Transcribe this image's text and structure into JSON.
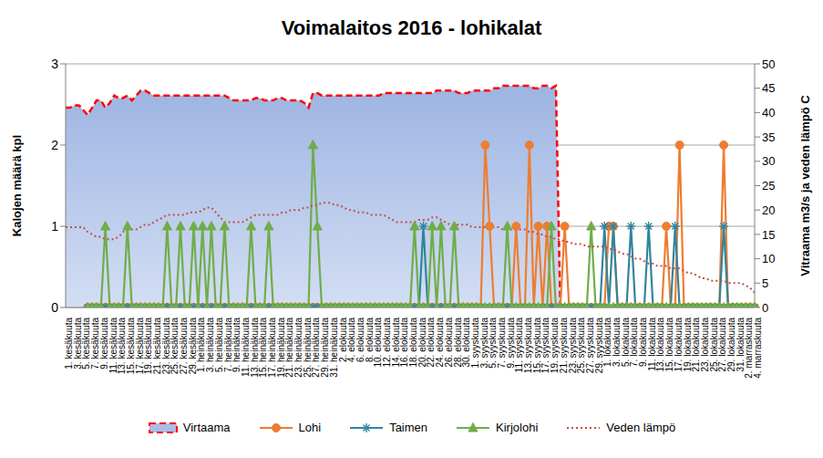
{
  "chart_data": {
    "type": "line",
    "title": "Voimalaitos 2016 - lohikalat",
    "ylabel": "Kalojen määrä kpl",
    "y2label": "Vitraama m3/s ja veden lämpö C",
    "categories": [
      "1. kesäkuuta",
      null,
      "3. kesäkuuta",
      null,
      "5. kesäkuuta",
      null,
      "7. kesäkuuta",
      null,
      "9. kesäkuuta",
      null,
      "11. kesäkuuta",
      null,
      "13. kesäkuuta",
      null,
      "15. kesäkuuta",
      null,
      "17. kesäkuuta",
      null,
      "19. kesäkuuta",
      null,
      "21. kesäkuuta",
      null,
      "23. kesäkuuta",
      null,
      "25. kesäkuuta",
      null,
      "27. kesäkuuta",
      null,
      "29. kesäkuuta",
      null,
      "1. heinäkuuta",
      null,
      "3. heinäkuuta",
      null,
      "5. heinäkuuta",
      null,
      "7. heinäkuuta",
      null,
      "9. heinäkuuta",
      null,
      "11. heinäkuuta",
      null,
      "13. heinäkuuta",
      null,
      "15. heinäkuuta",
      null,
      "17. heinäkuuta",
      null,
      "19. heinäkuuta",
      null,
      "21. heinäkuuta",
      null,
      "23. heinäkuuta",
      null,
      "25. heinäkuuta",
      null,
      "27. heinäkuuta",
      null,
      "29. heinäkuuta",
      null,
      "31. heinäkuuta",
      null,
      "2. elokuuta",
      null,
      "4. elokuuta",
      null,
      "6. elokuuta",
      null,
      "8. elokuuta",
      null,
      "10. elokuuta",
      null,
      "12. elokuuta",
      null,
      "14. elokuuta",
      null,
      "16. elokuuta",
      null,
      "18. elokuuta",
      null,
      "20. elokuuta",
      null,
      "22. elokuuta",
      null,
      "24. elokuuta",
      null,
      "26. elokuuta",
      null,
      "28. elokuuta",
      null,
      "30. elokuuta",
      null,
      "1. syyskuuta",
      null,
      "3. syyskuuta",
      null,
      "5. syyskuuta",
      null,
      "7. syyskuuta",
      null,
      "9. syyskuuta",
      null,
      "11. syyskuuta",
      null,
      "13. syyskuuta",
      null,
      "15. syyskuuta",
      null,
      "17. syyskuuta",
      null,
      "19. syyskuuta",
      null,
      "21. syyskuuta",
      null,
      "23. syyskuuta",
      null,
      "25. syyskuuta",
      null,
      "27. syyskuuta",
      null,
      "29. syyskuuta",
      null,
      "1. lokakuuta",
      null,
      "3. lokakuuta",
      null,
      "5. lokakuuta",
      null,
      "7. lokakuuta",
      null,
      "9. lokakuuta",
      null,
      "11. lokakuuta",
      null,
      "13. lokakuuta",
      null,
      "15. lokakuuta",
      null,
      "17. lokakuuta",
      null,
      "19. lokakuuta",
      null,
      "21. lokakuuta",
      null,
      "23. lokakuuta",
      null,
      "25. lokakuuta",
      null,
      "27. lokakuuta",
      null,
      "29. lokakuuta",
      null,
      "31. lokakuuta",
      null,
      "2. marraskuuta",
      null,
      "4. marraskuuta"
    ],
    "series": [
      {
        "name": "Virtaama",
        "type": "area",
        "axis": "y2",
        "color": "#ff0000",
        "line_style": "dashed",
        "values": [
          41,
          41,
          41.5,
          41.5,
          40.5,
          39.5,
          41,
          42.5,
          42.5,
          41,
          42,
          43.5,
          43,
          43,
          43.5,
          42.5,
          43.5,
          44.5,
          44.5,
          44,
          43.5,
          43.5,
          43.5,
          43.5,
          43.5,
          43.5,
          43.5,
          43.5,
          43.5,
          43.5,
          43.5,
          43.5,
          43.5,
          43.5,
          43.5,
          43.5,
          43.5,
          43,
          42.5,
          42.5,
          42.5,
          42.5,
          42.5,
          43,
          43,
          42.5,
          42.5,
          42.5,
          43,
          43,
          42.5,
          42.5,
          42.5,
          42.5,
          42,
          41,
          44,
          44,
          43.5,
          43.5,
          43.5,
          43.5,
          43.5,
          43.5,
          43.5,
          43.5,
          43.5,
          43.5,
          43.5,
          43.5,
          43.5,
          43.5,
          44,
          44,
          44,
          44,
          44,
          44,
          44,
          44,
          44,
          44,
          44,
          44,
          44.5,
          44.5,
          44.5,
          44.5,
          44.5,
          44,
          44,
          44,
          44.5,
          44.5,
          44.5,
          44.5,
          44.5,
          45,
          45,
          45.5,
          45.5,
          45.5,
          45.5,
          45.5,
          45.5,
          45.5,
          45,
          45,
          45.5,
          45.5,
          45,
          45.5,
          0,
          0,
          0,
          0,
          0,
          0,
          0,
          0,
          0,
          0,
          0,
          0,
          0,
          0,
          0,
          0,
          0,
          0,
          0,
          0,
          0,
          0,
          0,
          0,
          0,
          0,
          0,
          0,
          0,
          0,
          0,
          0,
          0,
          0,
          0,
          0,
          0,
          0,
          0,
          0,
          0,
          0,
          0,
          0,
          0
        ]
      },
      {
        "name": "Lohi",
        "type": "line",
        "color": "#ed7d31",
        "marker": "circle",
        "line_style": "solid",
        "values": [
          null,
          null,
          null,
          null,
          null,
          0,
          0,
          0,
          0,
          0,
          0,
          0,
          0,
          0,
          0,
          0,
          0,
          0,
          0,
          0,
          0,
          0,
          0,
          0,
          0,
          0,
          0,
          0,
          0,
          0,
          0,
          0,
          0,
          0,
          0,
          0,
          0,
          0,
          0,
          0,
          0,
          0,
          0,
          0,
          0,
          0,
          0,
          0,
          0,
          0,
          0,
          0,
          0,
          0,
          0,
          0,
          0,
          0,
          0,
          0,
          0,
          0,
          0,
          0,
          0,
          0,
          0,
          0,
          0,
          0,
          0,
          0,
          0,
          0,
          0,
          0,
          0,
          0,
          0,
          0,
          0,
          0,
          0,
          0,
          0,
          0,
          0,
          0,
          0,
          0,
          0,
          0,
          0,
          0,
          0,
          2,
          1,
          0,
          0,
          0,
          0,
          0,
          1,
          0,
          0,
          2,
          0,
          1,
          0,
          1,
          0,
          0,
          0,
          1,
          0,
          0,
          0,
          0,
          0,
          0,
          0,
          0,
          0,
          1,
          1,
          0,
          0,
          0,
          0,
          0,
          0,
          0,
          0,
          0,
          0,
          0,
          1,
          0,
          0,
          2,
          0,
          0,
          0,
          0,
          0,
          0,
          0,
          0,
          0,
          2,
          0,
          0,
          0,
          0,
          0,
          0,
          0
        ]
      },
      {
        "name": "Taimen",
        "type": "line",
        "color": "#31859c",
        "marker": "asterisk",
        "line_style": "solid",
        "values": [
          null,
          null,
          null,
          null,
          null,
          0,
          0,
          0,
          0,
          0,
          0,
          0,
          0,
          0,
          0,
          0,
          0,
          0,
          0,
          0,
          0,
          0,
          0,
          0,
          0,
          0,
          0,
          0,
          0,
          0,
          0,
          0,
          0,
          0,
          0,
          0,
          0,
          0,
          0,
          0,
          0,
          0,
          0,
          0,
          0,
          0,
          0,
          0,
          0,
          0,
          0,
          0,
          0,
          0,
          0,
          0,
          0,
          0,
          0,
          0,
          0,
          0,
          0,
          0,
          0,
          0,
          0,
          0,
          0,
          0,
          0,
          0,
          0,
          0,
          0,
          0,
          0,
          0,
          0,
          0,
          0,
          1,
          0,
          0,
          0,
          0,
          0,
          0,
          0,
          0,
          0,
          0,
          0,
          0,
          0,
          0,
          0,
          0,
          0,
          0,
          0,
          0,
          0,
          0,
          0,
          0,
          0,
          0,
          0,
          0,
          0,
          0,
          0,
          0,
          0,
          0,
          0,
          0,
          0,
          0,
          0,
          0,
          1,
          0,
          1,
          0,
          0,
          0,
          1,
          0,
          0,
          0,
          1,
          0,
          0,
          0,
          0,
          0,
          1,
          0,
          0,
          0,
          0,
          0,
          0,
          0,
          0,
          0,
          0,
          1,
          0,
          0,
          0,
          0,
          0,
          0,
          0
        ]
      },
      {
        "name": "Kirjolohi",
        "type": "line",
        "color": "#70ad47",
        "marker": "triangle",
        "line_style": "solid",
        "values": [
          null,
          null,
          null,
          null,
          null,
          0,
          0,
          0,
          0,
          1,
          0,
          0,
          0,
          0,
          1,
          0,
          0,
          0,
          0,
          0,
          0,
          0,
          0,
          1,
          0,
          0,
          1,
          0,
          0,
          1,
          0,
          1,
          0,
          1,
          0,
          0,
          1,
          0,
          0,
          0,
          0,
          0,
          1,
          0,
          0,
          0,
          1,
          0,
          0,
          0,
          0,
          0,
          0,
          0,
          0,
          0,
          2,
          1,
          0,
          0,
          0,
          0,
          0,
          0,
          0,
          0,
          0,
          0,
          0,
          0,
          0,
          0,
          0,
          0,
          0,
          0,
          0,
          0,
          0,
          1,
          0,
          0,
          0,
          1,
          0,
          1,
          0,
          0,
          1,
          0,
          0,
          0,
          0,
          0,
          0,
          0,
          0,
          0,
          0,
          0,
          1,
          0,
          0,
          0,
          0,
          0,
          0,
          0,
          0,
          0,
          1,
          0,
          0,
          0,
          0,
          0,
          0,
          0,
          0,
          1,
          0,
          0,
          0,
          0,
          0,
          0,
          0,
          0,
          0,
          0,
          0,
          0,
          0,
          0,
          0,
          0,
          0,
          0,
          0,
          0,
          0,
          0,
          0,
          0,
          0,
          0,
          0,
          0,
          0,
          0,
          0,
          0,
          0,
          0,
          0,
          0,
          0
        ]
      },
      {
        "name": "Veden lämpö",
        "type": "line",
        "axis": "y2",
        "color": "#c0504d",
        "line_style": "dotted",
        "values": [
          16.5,
          16.5,
          16.5,
          16.5,
          16.5,
          15.5,
          15,
          14.5,
          14.5,
          14,
          14,
          14,
          14.5,
          15.5,
          16,
          16,
          16,
          16.5,
          17,
          17,
          17.5,
          18,
          18.5,
          19,
          19,
          19,
          19,
          19,
          19.5,
          19.5,
          19.5,
          20,
          20.5,
          20.5,
          19.5,
          18.5,
          17.5,
          17.5,
          17.5,
          17.5,
          17.5,
          18,
          18.5,
          19,
          19,
          19,
          19,
          19,
          19,
          19.5,
          19.5,
          20,
          20,
          20,
          20.5,
          20.5,
          21,
          21,
          21.5,
          21.5,
          21.5,
          21,
          21,
          20.5,
          20,
          20,
          19.5,
          19.5,
          19.5,
          19,
          19,
          19,
          19,
          18.5,
          18,
          17.5,
          17.5,
          17.5,
          17.5,
          17.5,
          18,
          18,
          18,
          18.5,
          18.5,
          18,
          17.5,
          17,
          17,
          17,
          17,
          17,
          16.5,
          16.5,
          16.5,
          16.5,
          16.5,
          16.5,
          16.5,
          16,
          16,
          16,
          16,
          16,
          16,
          15.5,
          15.5,
          15,
          15,
          14.5,
          14.5,
          14,
          14,
          13.5,
          13.5,
          13,
          13,
          13,
          12.5,
          12.5,
          12.5,
          12.5,
          12.5,
          12,
          12,
          11.5,
          11,
          11,
          10.5,
          10,
          10,
          9.5,
          9,
          9,
          8.5,
          8.5,
          8.5,
          8,
          8,
          8,
          7.5,
          7,
          7,
          6.5,
          6,
          6,
          5.5,
          5.5,
          5.5,
          5.5,
          5,
          5,
          5,
          5,
          4.5,
          4,
          3
        ]
      }
    ],
    "ylim": [
      0,
      3
    ],
    "yticks": [
      0,
      1,
      2,
      3
    ],
    "y2lim": [
      0,
      50
    ],
    "y2ticks": [
      0,
      5,
      10,
      15,
      20,
      25,
      30,
      35,
      40,
      45,
      50
    ],
    "grid": true,
    "legend": "bottom"
  }
}
